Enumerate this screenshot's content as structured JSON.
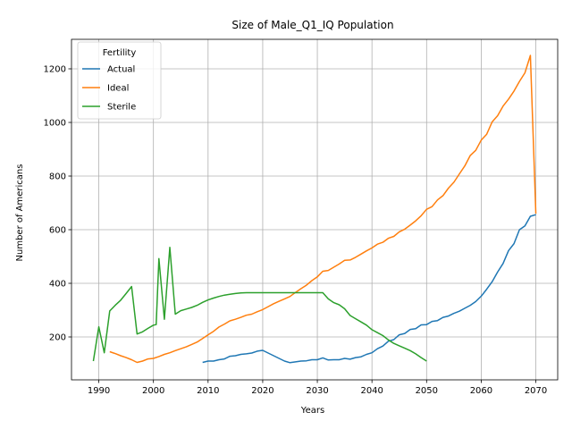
{
  "chart_data": {
    "type": "line",
    "title": "Size of Male_Q1_IQ Population",
    "xlabel": "Years",
    "ylabel": "Number of Americans",
    "xlim": [
      1985,
      2074
    ],
    "ylim": [
      40,
      1310
    ],
    "xticks": [
      1990,
      2000,
      2010,
      2020,
      2030,
      2040,
      2050,
      2060,
      2070
    ],
    "yticks": [
      200,
      400,
      600,
      800,
      1000,
      1200
    ],
    "grid": true,
    "legend": {
      "title": "Fertility",
      "position": "top-left"
    },
    "series": [
      {
        "name": "Actual",
        "color": "#1f77b4",
        "points": [
          [
            2009,
            105
          ],
          [
            2010,
            110
          ],
          [
            2011,
            110
          ],
          [
            2012,
            115
          ],
          [
            2013,
            118
          ],
          [
            2014,
            128
          ],
          [
            2015,
            130
          ],
          [
            2016,
            135
          ],
          [
            2017,
            137
          ],
          [
            2018,
            140
          ],
          [
            2019,
            147
          ],
          [
            2020,
            150
          ],
          [
            2021,
            140
          ],
          [
            2022,
            130
          ],
          [
            2023,
            120
          ],
          [
            2024,
            110
          ],
          [
            2025,
            104
          ],
          [
            2026,
            107
          ],
          [
            2027,
            110
          ],
          [
            2028,
            111
          ],
          [
            2029,
            115
          ],
          [
            2030,
            115
          ],
          [
            2031,
            122
          ],
          [
            2032,
            114
          ],
          [
            2033,
            115
          ],
          [
            2034,
            115
          ],
          [
            2035,
            120
          ],
          [
            2036,
            117
          ],
          [
            2037,
            123
          ],
          [
            2038,
            126
          ],
          [
            2039,
            135
          ],
          [
            2040,
            141
          ],
          [
            2041,
            156
          ],
          [
            2042,
            166
          ],
          [
            2043,
            184
          ],
          [
            2044,
            190
          ],
          [
            2045,
            208
          ],
          [
            2046,
            213
          ],
          [
            2047,
            228
          ],
          [
            2048,
            231
          ],
          [
            2049,
            245
          ],
          [
            2050,
            246
          ],
          [
            2051,
            258
          ],
          [
            2052,
            261
          ],
          [
            2053,
            273
          ],
          [
            2054,
            278
          ],
          [
            2055,
            288
          ],
          [
            2056,
            296
          ],
          [
            2057,
            307
          ],
          [
            2058,
            318
          ],
          [
            2059,
            332
          ],
          [
            2060,
            352
          ],
          [
            2061,
            378
          ],
          [
            2062,
            406
          ],
          [
            2063,
            442
          ],
          [
            2064,
            474
          ],
          [
            2065,
            522
          ],
          [
            2066,
            548
          ],
          [
            2067,
            600
          ],
          [
            2068,
            614
          ],
          [
            2069,
            650
          ],
          [
            2070,
            656
          ]
        ]
      },
      {
        "name": "Ideal",
        "color": "#ff7f0e",
        "points": [
          [
            1992,
            145
          ],
          [
            1993,
            138
          ],
          [
            1994,
            130
          ],
          [
            1995,
            123
          ],
          [
            1996,
            115
          ],
          [
            1997,
            105
          ],
          [
            1998,
            110
          ],
          [
            1999,
            118
          ],
          [
            2000,
            120
          ],
          [
            2001,
            127
          ],
          [
            2002,
            135
          ],
          [
            2003,
            141
          ],
          [
            2004,
            149
          ],
          [
            2005,
            156
          ],
          [
            2006,
            163
          ],
          [
            2007,
            172
          ],
          [
            2008,
            181
          ],
          [
            2009,
            194
          ],
          [
            2010,
            208
          ],
          [
            2011,
            221
          ],
          [
            2012,
            237
          ],
          [
            2013,
            248
          ],
          [
            2014,
            260
          ],
          [
            2015,
            266
          ],
          [
            2016,
            273
          ],
          [
            2017,
            281
          ],
          [
            2018,
            285
          ],
          [
            2019,
            294
          ],
          [
            2020,
            302
          ],
          [
            2021,
            313
          ],
          [
            2022,
            324
          ],
          [
            2023,
            333
          ],
          [
            2024,
            342
          ],
          [
            2025,
            351
          ],
          [
            2026,
            366
          ],
          [
            2027,
            380
          ],
          [
            2028,
            393
          ],
          [
            2029,
            410
          ],
          [
            2030,
            424
          ],
          [
            2031,
            445
          ],
          [
            2032,
            448
          ],
          [
            2033,
            460
          ],
          [
            2034,
            472
          ],
          [
            2035,
            486
          ],
          [
            2036,
            487
          ],
          [
            2037,
            497
          ],
          [
            2038,
            509
          ],
          [
            2039,
            521
          ],
          [
            2040,
            532
          ],
          [
            2041,
            546
          ],
          [
            2042,
            553
          ],
          [
            2043,
            568
          ],
          [
            2044,
            575
          ],
          [
            2045,
            592
          ],
          [
            2046,
            602
          ],
          [
            2047,
            617
          ],
          [
            2048,
            633
          ],
          [
            2049,
            652
          ],
          [
            2050,
            676
          ],
          [
            2051,
            686
          ],
          [
            2052,
            711
          ],
          [
            2053,
            727
          ],
          [
            2054,
            755
          ],
          [
            2055,
            777
          ],
          [
            2056,
            808
          ],
          [
            2057,
            838
          ],
          [
            2058,
            877
          ],
          [
            2059,
            896
          ],
          [
            2060,
            934
          ],
          [
            2061,
            956
          ],
          [
            2062,
            1002
          ],
          [
            2063,
            1025
          ],
          [
            2064,
            1061
          ],
          [
            2065,
            1087
          ],
          [
            2066,
            1117
          ],
          [
            2067,
            1153
          ],
          [
            2068,
            1185
          ],
          [
            2069,
            1250
          ],
          [
            2070,
            660
          ]
        ]
      },
      {
        "name": "Sterile",
        "color": "#2ca02c",
        "points": [
          [
            1989,
            110
          ],
          [
            1990,
            238
          ],
          [
            1991,
            141
          ],
          [
            1992,
            297
          ],
          [
            1993,
            318
          ],
          [
            1994,
            337
          ],
          [
            1995,
            362
          ],
          [
            1996,
            388
          ],
          [
            1997,
            211
          ],
          [
            1998,
            219
          ],
          [
            1999,
            232
          ],
          [
            2000,
            244
          ],
          [
            2000.5,
            246
          ],
          [
            2001,
            492
          ],
          [
            2002,
            266
          ],
          [
            2003,
            534
          ],
          [
            2004,
            285
          ],
          [
            2005,
            298
          ],
          [
            2006,
            304
          ],
          [
            2007,
            310
          ],
          [
            2008,
            318
          ],
          [
            2009,
            329
          ],
          [
            2010,
            338
          ],
          [
            2011,
            345
          ],
          [
            2012,
            351
          ],
          [
            2013,
            356
          ],
          [
            2014,
            359
          ],
          [
            2015,
            362
          ],
          [
            2016,
            364
          ],
          [
            2017,
            365
          ],
          [
            2018,
            365
          ],
          [
            2019,
            365
          ],
          [
            2020,
            365
          ],
          [
            2021,
            365
          ],
          [
            2022,
            365
          ],
          [
            2023,
            365
          ],
          [
            2024,
            365
          ],
          [
            2025,
            365
          ],
          [
            2026,
            365
          ],
          [
            2027,
            365
          ],
          [
            2028,
            365
          ],
          [
            2029,
            365
          ],
          [
            2030,
            365
          ],
          [
            2031,
            365
          ],
          [
            2032,
            342
          ],
          [
            2033,
            328
          ],
          [
            2034,
            320
          ],
          [
            2035,
            305
          ],
          [
            2036,
            280
          ],
          [
            2037,
            268
          ],
          [
            2038,
            256
          ],
          [
            2039,
            244
          ],
          [
            2040,
            227
          ],
          [
            2041,
            216
          ],
          [
            2042,
            205
          ],
          [
            2043,
            189
          ],
          [
            2044,
            176
          ],
          [
            2045,
            167
          ],
          [
            2046,
            158
          ],
          [
            2047,
            149
          ],
          [
            2048,
            137
          ],
          [
            2049,
            123
          ],
          [
            2050,
            110
          ]
        ]
      }
    ]
  }
}
